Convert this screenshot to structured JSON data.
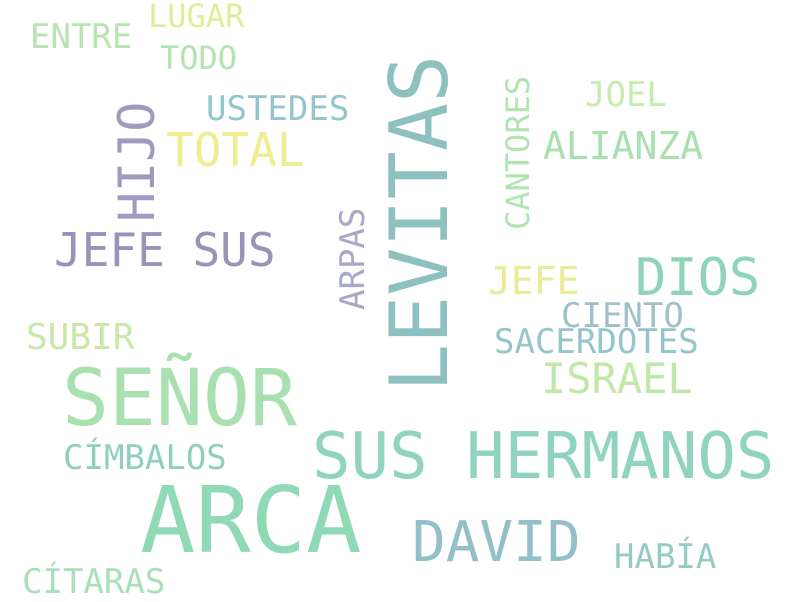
{
  "words": {
    "arca": {
      "text": "ARCA",
      "color": "#8fd9b6"
    },
    "levitas": {
      "text": "LEVITAS",
      "color": "#8ec0c0"
    },
    "senor": {
      "text": "SEÑOR",
      "color": "#a8e0b0"
    },
    "sus_hermanos": {
      "text": "SUS HERMANOS",
      "color": "#8fd3c0"
    },
    "david": {
      "text": "DAVID",
      "color": "#93c0c8"
    },
    "dios": {
      "text": "DIOS",
      "color": "#8fd3b8"
    },
    "jefe_sus": {
      "text": "JEFE SUS",
      "color": "#9b92b8"
    },
    "hijo": {
      "text": "HIJO",
      "color": "#a09ac0"
    },
    "total": {
      "text": "TOTAL",
      "color": "#f0ec90"
    },
    "israel": {
      "text": "ISRAEL",
      "color": "#c0e8a8"
    },
    "alianza": {
      "text": "ALIANZA",
      "color": "#a8e0b0"
    },
    "jefe2": {
      "text": "JEFE",
      "color": "#e8ec98"
    },
    "sacerdotes": {
      "text": "SACERDOTES",
      "color": "#94c4cc"
    },
    "ciento": {
      "text": "CIENTO",
      "color": "#a0c0c8"
    },
    "subir": {
      "text": "SUBIR",
      "color": "#c8e8a8"
    },
    "cimbalos": {
      "text": "CÍMBALOS",
      "color": "#8fcfc0"
    },
    "ustedes": {
      "text": "USTEDES",
      "color": "#94c4cc"
    },
    "cantores": {
      "text": "CANTORES",
      "color": "#b0e4b0"
    },
    "arpas": {
      "text": "ARPAS",
      "color": "#a8a8c8"
    },
    "joel": {
      "text": "JOEL",
      "color": "#c8ecb0"
    },
    "habia": {
      "text": "HABÍA",
      "color": "#94ccc4"
    },
    "citaras": {
      "text": "CÍTARAS",
      "color": "#a8e0b8"
    },
    "todo": {
      "text": "TODO",
      "color": "#b0e4b0"
    },
    "entre": {
      "text": "ENTRE",
      "color": "#b8e4b0"
    },
    "lugar": {
      "text": "LUGAR",
      "color": "#e0ec98"
    }
  }
}
